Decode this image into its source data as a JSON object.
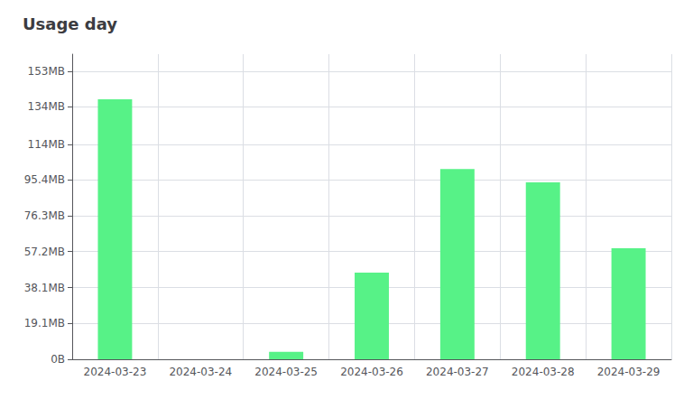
{
  "chart_data": {
    "type": "bar",
    "title": "Usage day",
    "categories": [
      "2024-03-23",
      "2024-03-24",
      "2024-03-25",
      "2024-03-26",
      "2024-03-27",
      "2024-03-28",
      "2024-03-29"
    ],
    "values": [
      138.0,
      0.0,
      4.0,
      46.0,
      101.0,
      94.0,
      59.0
    ],
    "color": "#57f287",
    "ylim": [
      0,
      162
    ],
    "yticks": [
      {
        "value": 0,
        "label": "0B"
      },
      {
        "value": 19.1,
        "label": "19.1MB"
      },
      {
        "value": 38.1,
        "label": "38.1MB"
      },
      {
        "value": 57.2,
        "label": "57.2MB"
      },
      {
        "value": 76.3,
        "label": "76.3MB"
      },
      {
        "value": 95.4,
        "label": "95.4MB"
      },
      {
        "value": 114,
        "label": "114MB"
      },
      {
        "value": 134,
        "label": "134MB"
      },
      {
        "value": 153,
        "label": "153MB"
      }
    ],
    "grid": true
  }
}
